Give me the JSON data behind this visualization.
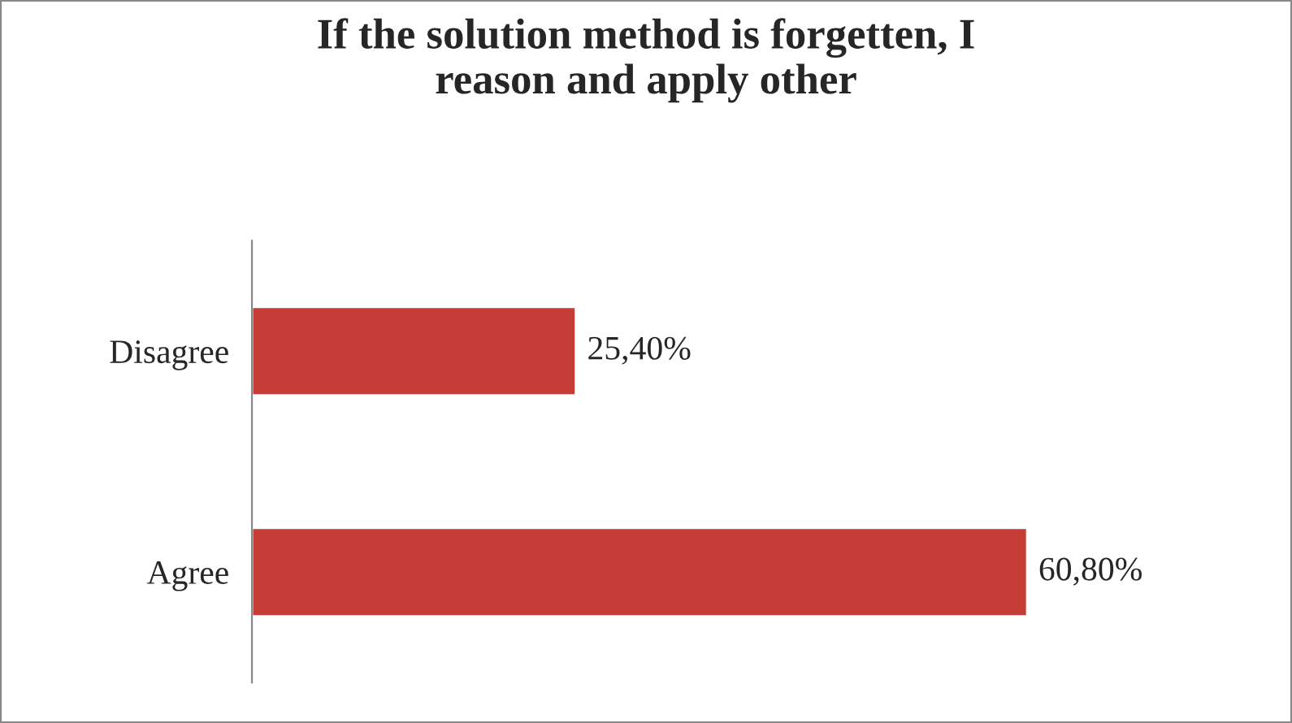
{
  "chart_data": {
    "type": "bar",
    "orientation": "horizontal",
    "title": "If the solution method is forgetten, I\nreason and apply other",
    "categories": [
      "Disagree",
      "Agree"
    ],
    "values": [
      25.4,
      60.8
    ],
    "value_labels": [
      "25,40%",
      "60,80%"
    ],
    "color": "#c63d38",
    "grid": false,
    "legend": false
  }
}
